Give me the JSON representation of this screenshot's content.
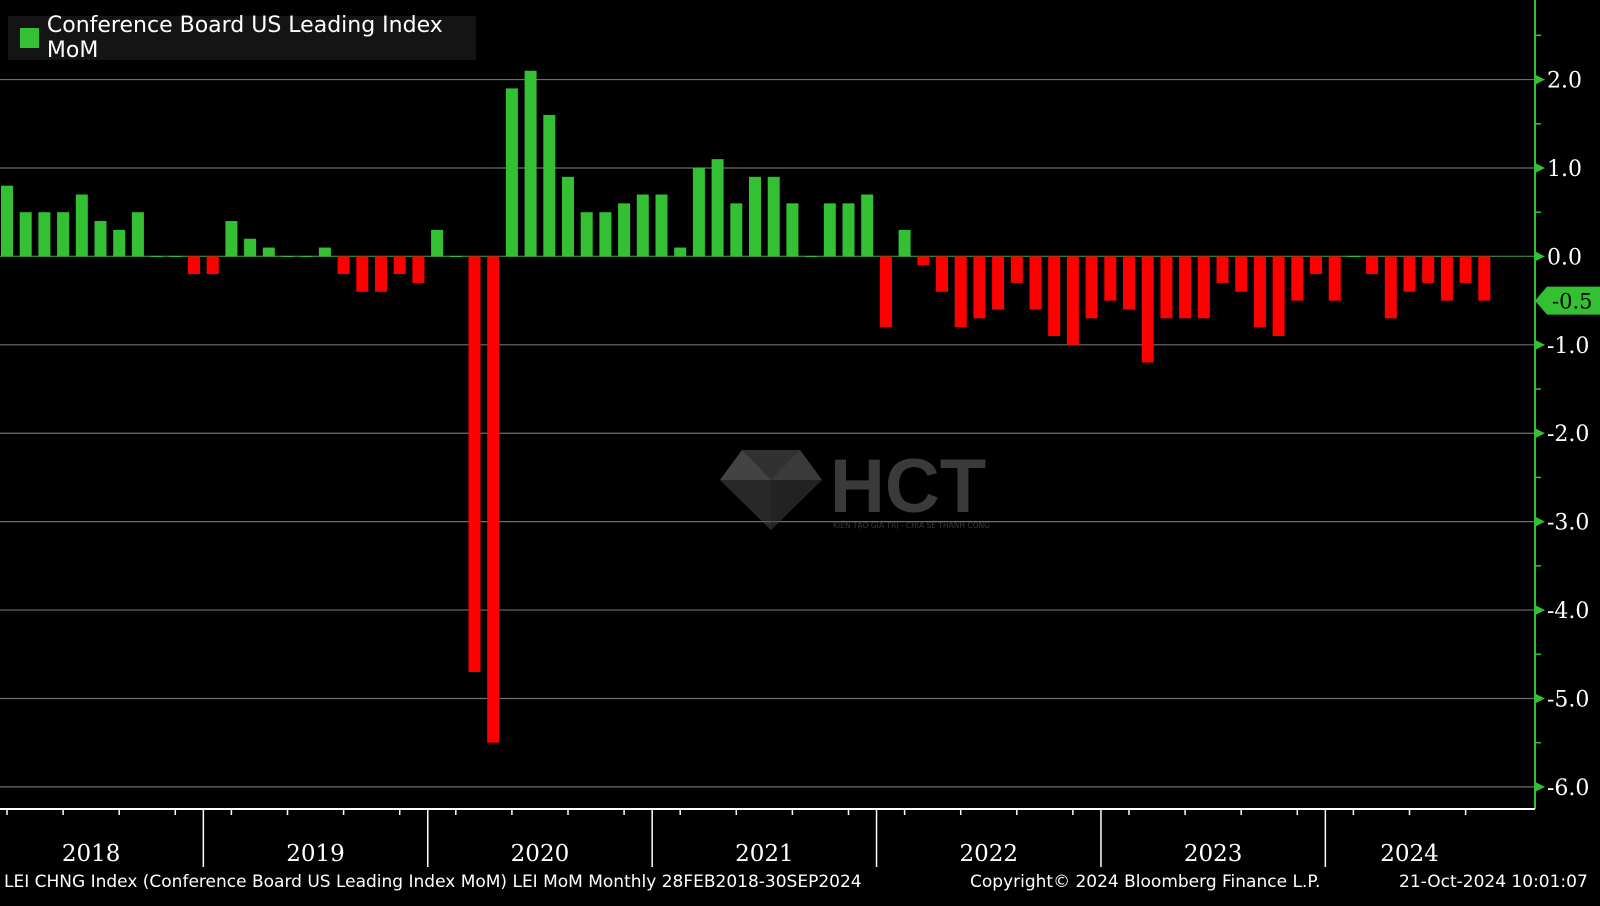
{
  "chart_data": {
    "type": "bar",
    "title": "",
    "legend": {
      "label": "Conference Board US Leading Index MoM",
      "position": "top-left"
    },
    "x_start": "2018-02",
    "x_end": "2024-09",
    "frequency": "monthly",
    "year_labels": [
      "2018",
      "2019",
      "2020",
      "2021",
      "2022",
      "2023",
      "2024"
    ],
    "y_ticks": [
      "2.0",
      "1.0",
      "0.0",
      "-1.0",
      "-2.0",
      "-3.0",
      "-4.0",
      "-5.0",
      "-6.0"
    ],
    "ylim": [
      -6.25,
      2.9
    ],
    "y_axis_side": "right",
    "grid": true,
    "last_value_label": "-0.5",
    "values": [
      0.8,
      0.5,
      0.5,
      0.5,
      0.7,
      0.4,
      0.3,
      0.5,
      0.0,
      0.0,
      -0.2,
      -0.2,
      0.4,
      0.2,
      0.1,
      0.0,
      0.0,
      0.1,
      -0.2,
      -0.4,
      -0.4,
      -0.2,
      -0.3,
      0.3,
      0.0,
      -4.7,
      -5.5,
      1.9,
      2.1,
      1.6,
      0.9,
      0.5,
      0.5,
      0.6,
      0.7,
      0.7,
      0.1,
      1.0,
      1.1,
      0.6,
      0.9,
      0.9,
      0.6,
      0.0,
      0.6,
      0.6,
      0.7,
      -0.8,
      0.3,
      -0.1,
      -0.4,
      -0.8,
      -0.7,
      -0.6,
      -0.3,
      -0.6,
      -0.9,
      -1.0,
      -0.7,
      -0.5,
      -0.6,
      -1.2,
      -0.7,
      -0.7,
      -0.7,
      -0.3,
      -0.4,
      -0.8,
      -0.9,
      -0.5,
      -0.2,
      -0.5,
      0.0,
      -0.2,
      -0.7,
      -0.4,
      -0.3,
      -0.5,
      -0.3,
      -0.5
    ],
    "colors": {
      "positive": "#33c133",
      "negative": "#ff0000",
      "axis": "#33c133",
      "grid": "#6e6e6e"
    }
  },
  "footer": {
    "left": "LEI CHNG Index (Conference Board US Leading Index MoM) LEI MoM  Monthly 28FEB2018-30SEP2024",
    "middle": "Copyright© 2024 Bloomberg Finance L.P.",
    "right": "21-Oct-2024 10:01:07"
  },
  "watermark": {
    "brand": "HCT",
    "tagline": "KIẾN TẠO GIÁ TRỊ - CHIA SẺ THÀNH CÔNG"
  }
}
